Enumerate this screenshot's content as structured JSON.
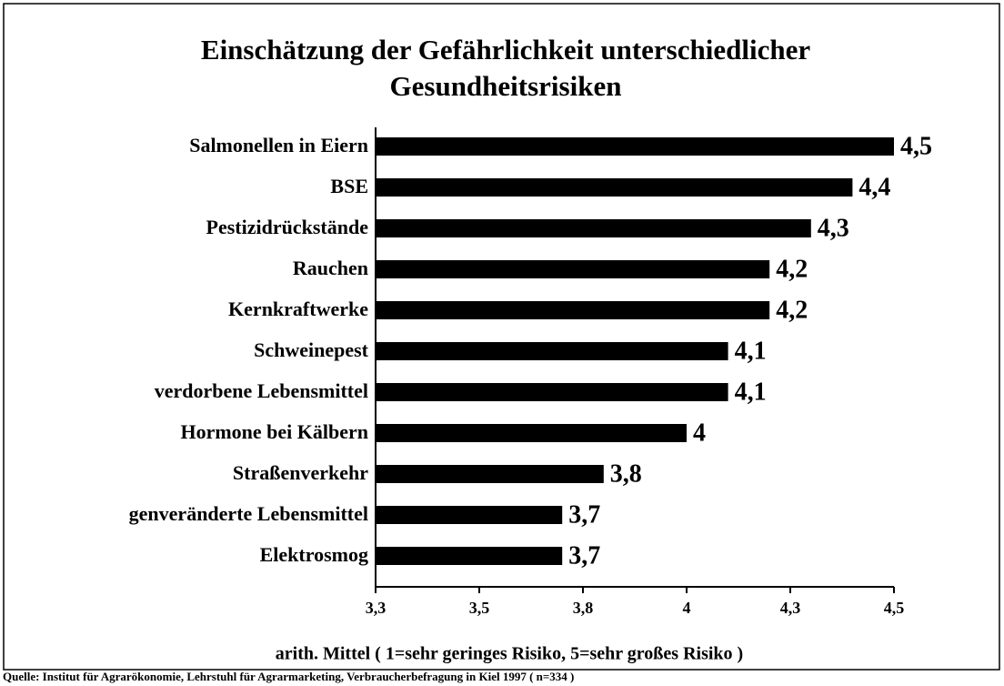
{
  "chart_data": {
    "type": "bar",
    "orientation": "horizontal",
    "title": [
      "Einschätzung der Gefährlichkeit unterschiedlicher",
      "Gesundheitsrisiken"
    ],
    "categories": [
      "Salmonellen in Eiern",
      "BSE",
      "Pestizidrückstände",
      "Rauchen",
      "Kernkraftwerke",
      "Schweinepest",
      "verdorbene Lebensmittel",
      "Hormone bei Kälbern",
      "Straßenverkehr",
      "genveränderte Lebensmittel",
      "Elektrosmog"
    ],
    "values": [
      4.5,
      4.4,
      4.3,
      4.2,
      4.2,
      4.1,
      4.1,
      4.0,
      3.8,
      3.7,
      3.7
    ],
    "value_labels": [
      "4,5",
      "4,4",
      "4,3",
      "4,2",
      "4,2",
      "4,1",
      "4,1",
      "4",
      "3,8",
      "3,7",
      "3,7"
    ],
    "color": "#000000",
    "xlim": [
      3.25,
      4.5
    ],
    "xticks": [
      {
        "value": 3.25,
        "label": "3,3"
      },
      {
        "value": 3.5,
        "label": "3,5"
      },
      {
        "value": 3.75,
        "label": "3,8"
      },
      {
        "value": 4.0,
        "label": "4"
      },
      {
        "value": 4.25,
        "label": "4,3"
      },
      {
        "value": 4.5,
        "label": "4,5"
      }
    ],
    "xlabel": "arith. Mittel ( 1=sehr geringes Risiko, 5=sehr großes Risiko )",
    "source": "Quelle: Institut für Agrarökonomie, Lehrstuhl für Agrarmarketing, Verbraucherbefragung in Kiel 1997 ( n=334 )",
    "grid": false
  }
}
